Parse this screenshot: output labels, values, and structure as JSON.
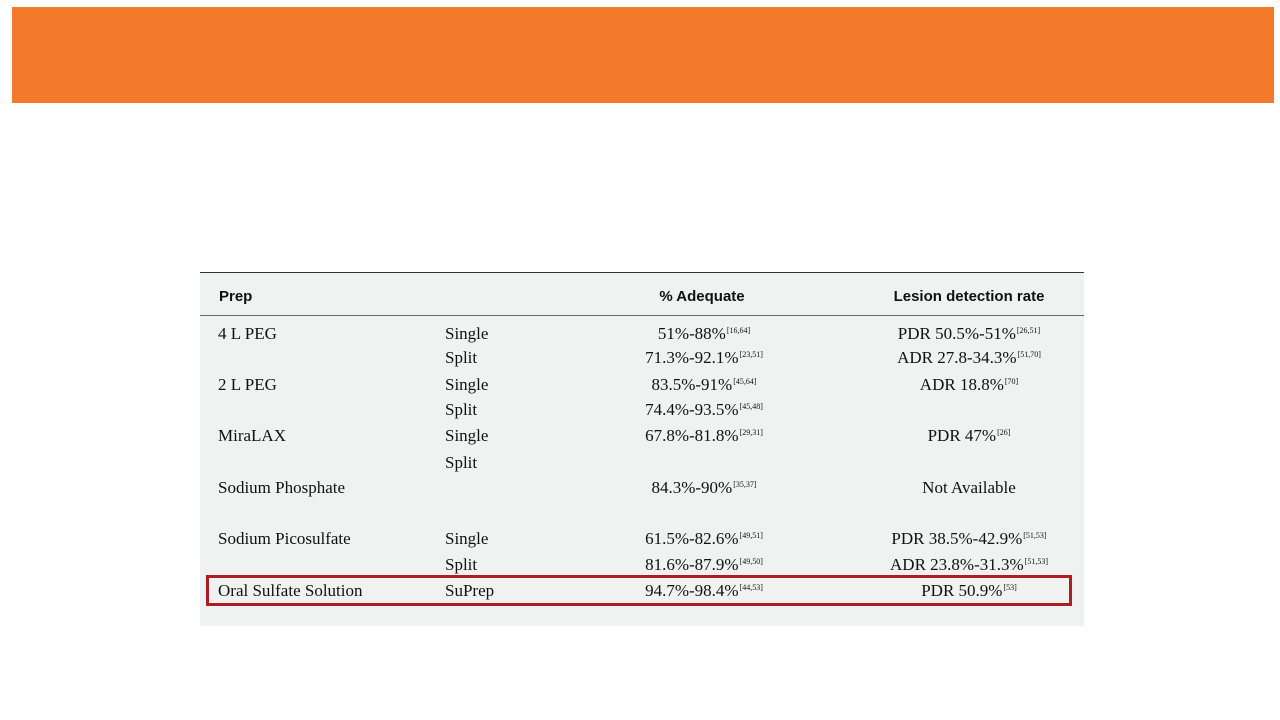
{
  "table": {
    "headers": {
      "prep": "Prep",
      "adequate": "% Adequate",
      "lesion": "Lesion detection rate"
    },
    "rows": [
      {
        "prep": "4 L PEG",
        "method": "Single",
        "adequate": "51%-88%",
        "adequate_ref": "[16,64]",
        "lesion": "PDR 50.5%-51%",
        "lesion_ref": "[26,51]"
      },
      {
        "prep": "",
        "method": "Split",
        "adequate": "71.3%-92.1%",
        "adequate_ref": "[23,51]",
        "lesion": "ADR 27.8-34.3%",
        "lesion_ref": "[51,70]"
      },
      {
        "prep": "2 L PEG",
        "method": "Single",
        "adequate": "83.5%-91%",
        "adequate_ref": "[45,64]",
        "lesion": "ADR 18.8%",
        "lesion_ref": "[70]"
      },
      {
        "prep": "",
        "method": "Split",
        "adequate": "74.4%-93.5%",
        "adequate_ref": "[45,48]",
        "lesion": "",
        "lesion_ref": ""
      },
      {
        "prep": "MiraLAX",
        "method": "Single",
        "adequate": "67.8%-81.8%",
        "adequate_ref": "[29,31]",
        "lesion": "PDR 47%",
        "lesion_ref": "[26]"
      },
      {
        "prep": "",
        "method": "Split",
        "adequate": "",
        "adequate_ref": "",
        "lesion": "",
        "lesion_ref": ""
      },
      {
        "prep": "Sodium Phosphate",
        "method": "",
        "adequate": "84.3%-90%",
        "adequate_ref": "[35,37]",
        "lesion": "Not Available",
        "lesion_ref": ""
      },
      {
        "prep": "Sodium Picosulfate",
        "method": "Single",
        "adequate": "61.5%-82.6%",
        "adequate_ref": "[49,51]",
        "lesion": "PDR 38.5%-42.9%",
        "lesion_ref": "[51,53]"
      },
      {
        "prep": "",
        "method": "Split",
        "adequate": "81.6%-87.9%",
        "adequate_ref": "[49,50]",
        "lesion": "ADR 23.8%-31.3%",
        "lesion_ref": "[51,53]"
      },
      {
        "prep": "Oral Sulfate Solution",
        "method": "SuPrep",
        "adequate": "94.7%-98.4%",
        "adequate_ref": "[44,53]",
        "lesion": "PDR 50.9%",
        "lesion_ref": "[53]"
      }
    ],
    "highlight_color": "#b01c22"
  },
  "banner": {
    "color": "#f37a2b"
  }
}
